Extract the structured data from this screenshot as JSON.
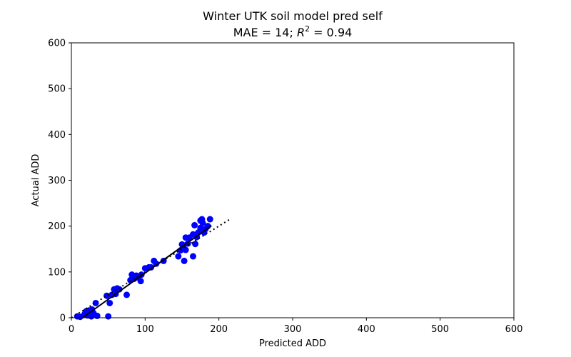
{
  "chart_data": {
    "type": "scatter",
    "title": "Winter UTK soil model pred self",
    "subtitle_prefix": "MAE = 14; ",
    "subtitle_r": "R",
    "subtitle_exp": "2",
    "subtitle_suffix": " = 0.94",
    "xlabel": "Predicted ADD",
    "ylabel": "Actual ADD",
    "xlim": [
      0,
      600
    ],
    "ylim": [
      0,
      600
    ],
    "xticks": [
      0,
      100,
      200,
      300,
      400,
      500,
      600
    ],
    "yticks": [
      0,
      100,
      200,
      300,
      400,
      500,
      600
    ],
    "grid": false,
    "colors": {
      "points": "#0000ff",
      "fit_line": "#000000",
      "identity_line": "#000000"
    },
    "series": [
      {
        "type": "scatter",
        "x": [
          8,
          12,
          18,
          20,
          22,
          24,
          27,
          28,
          30,
          33,
          35,
          48,
          50,
          52,
          55,
          58,
          60,
          62,
          65,
          75,
          80,
          82,
          85,
          88,
          90,
          94,
          95,
          100,
          105,
          108,
          112,
          115,
          125,
          145,
          148,
          150,
          152,
          153,
          155,
          155,
          158,
          160,
          165,
          165,
          167,
          168,
          170,
          172,
          175,
          175,
          177,
          178,
          180,
          182,
          185,
          188
        ],
        "y": [
          3,
          2,
          8,
          14,
          5,
          16,
          3,
          18,
          10,
          32,
          4,
          48,
          3,
          32,
          50,
          62,
          52,
          64,
          62,
          50,
          82,
          94,
          85,
          92,
          88,
          80,
          94,
          108,
          110,
          110,
          124,
          118,
          124,
          134,
          147,
          160,
          158,
          124,
          148,
          175,
          162,
          175,
          134,
          182,
          202,
          161,
          176,
          186,
          196,
          212,
          215,
          207,
          186,
          194,
          200,
          215
        ]
      }
    ],
    "fit_line": {
      "x": [
        15,
        190
      ],
      "y": [
        0,
        201
      ]
    },
    "identity_line": {
      "x": [
        0,
        215
      ],
      "y": [
        0,
        215
      ]
    }
  }
}
